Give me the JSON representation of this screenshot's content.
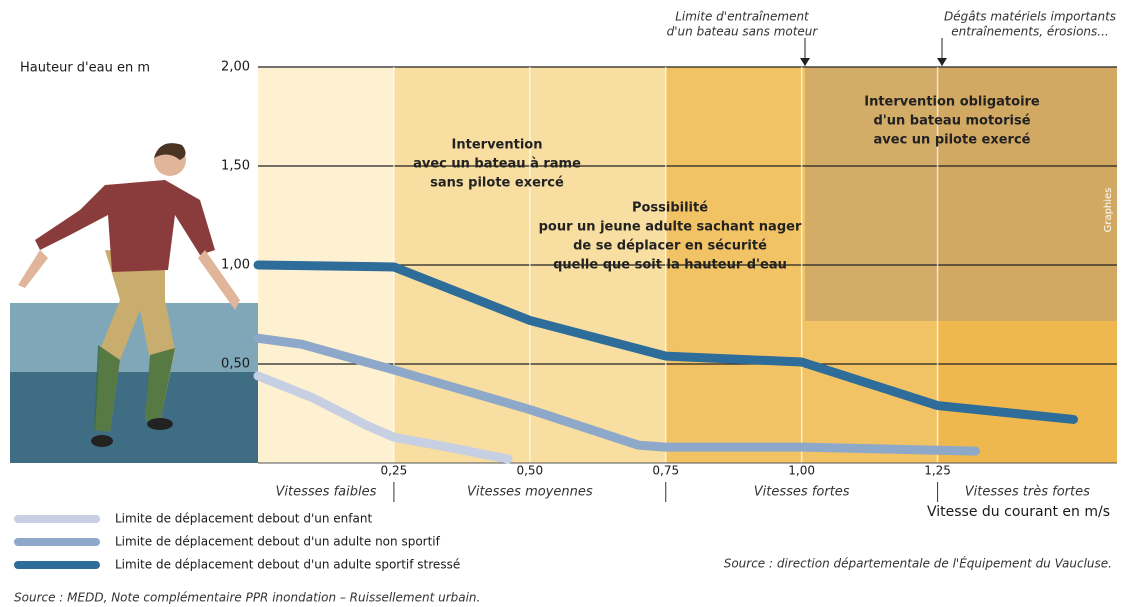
{
  "chart_data": {
    "type": "line",
    "y_label": "Hauteur d'eau en m",
    "x_label": "Vitesse du courant en m/s",
    "xlim": [
      0,
      1.58
    ],
    "ylim": [
      0,
      2
    ],
    "xticks": [
      {
        "value": 0.25,
        "label": "0,25"
      },
      {
        "value": 0.5,
        "label": "0,50"
      },
      {
        "value": 0.75,
        "label": "0,75"
      },
      {
        "value": 1.0,
        "label": "1,00"
      },
      {
        "value": 1.25,
        "label": "1,25"
      }
    ],
    "yticks": [
      {
        "value": 0.5,
        "label": "0,50"
      },
      {
        "value": 1.0,
        "label": "1,00"
      },
      {
        "value": 1.5,
        "label": "1,50"
      },
      {
        "value": 2.0,
        "label": "2,00"
      }
    ],
    "grid": true,
    "speed_classes": [
      {
        "label": "Vitesses faibles",
        "from": 0,
        "to": 0.25,
        "color": "#fdf1d2"
      },
      {
        "label": "Vitesses moyennes",
        "from": 0.25,
        "to": 0.75,
        "color": "#f8dea0"
      },
      {
        "label": "Vitesses fortes",
        "from": 0.75,
        "to": 1.25,
        "color": "#f2c364"
      },
      {
        "label": "Vitesses très fortes",
        "from": 1.25,
        "to": 1.58,
        "color": "#efb84e"
      }
    ],
    "series": [
      {
        "name": "Limite de déplacement debout d'un enfant",
        "color": "#c6d0e2",
        "x": [
          0,
          0.1,
          0.2,
          0.25,
          0.35,
          0.46
        ],
        "values": [
          0.44,
          0.33,
          0.19,
          0.13,
          0.08,
          0.02
        ]
      },
      {
        "name": "Limite de déplacement debout d'un adulte non sportif",
        "color": "#8ea8c9",
        "x": [
          0,
          0.08,
          0.25,
          0.5,
          0.7,
          0.75,
          1.0,
          1.32
        ],
        "values": [
          0.63,
          0.6,
          0.47,
          0.27,
          0.09,
          0.08,
          0.08,
          0.06
        ]
      },
      {
        "name": "Limite de déplacement debout d'un adulte sportif stressé",
        "color": "#2e6c99",
        "x": [
          0,
          0.25,
          0.5,
          0.75,
          1.0,
          1.25,
          1.5
        ],
        "values": [
          1.0,
          0.99,
          0.72,
          0.54,
          0.51,
          0.29,
          0.22
        ]
      }
    ],
    "annotations": [
      [
        "Intervention",
        "avec un bateau à rame",
        "sans pilote exercé"
      ],
      [
        "Possibilité",
        "pour un jeune adulte sachant nager",
        "de se déplacer en sécurité",
        "quelle que soit la hauteur d'eau"
      ],
      [
        "Intervention obligatoire",
        "d'un bateau motorisé",
        "avec un pilote exercé"
      ],
      [
        "Limite d'entraînement",
        "d'un bateau sans moteur"
      ],
      [
        "Dégâts matériels importants",
        "entraînements, érosions..."
      ]
    ],
    "credit": "Graphies",
    "source_right": "Source : direction départementale de l'Équipement du Vaucluse.",
    "source_bottom": "Source :  MEDD, Note complémentaire PPR inondation – Ruissellement urbain."
  }
}
